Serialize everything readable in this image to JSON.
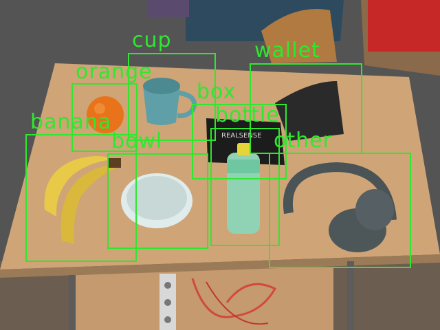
{
  "detections": [
    {
      "label": "cup"
    },
    {
      "label": "orange"
    },
    {
      "label": "wallet"
    },
    {
      "label": "box"
    },
    {
      "label": "bottle"
    },
    {
      "label": "banana"
    },
    {
      "label": "bowl"
    },
    {
      "label": "other"
    }
  ],
  "colors": {
    "box_stroke": "#2ee82e",
    "table": "#cfa577",
    "floor": "#b98c62"
  },
  "scene_text": {
    "box_brand": "REALSENSE"
  }
}
